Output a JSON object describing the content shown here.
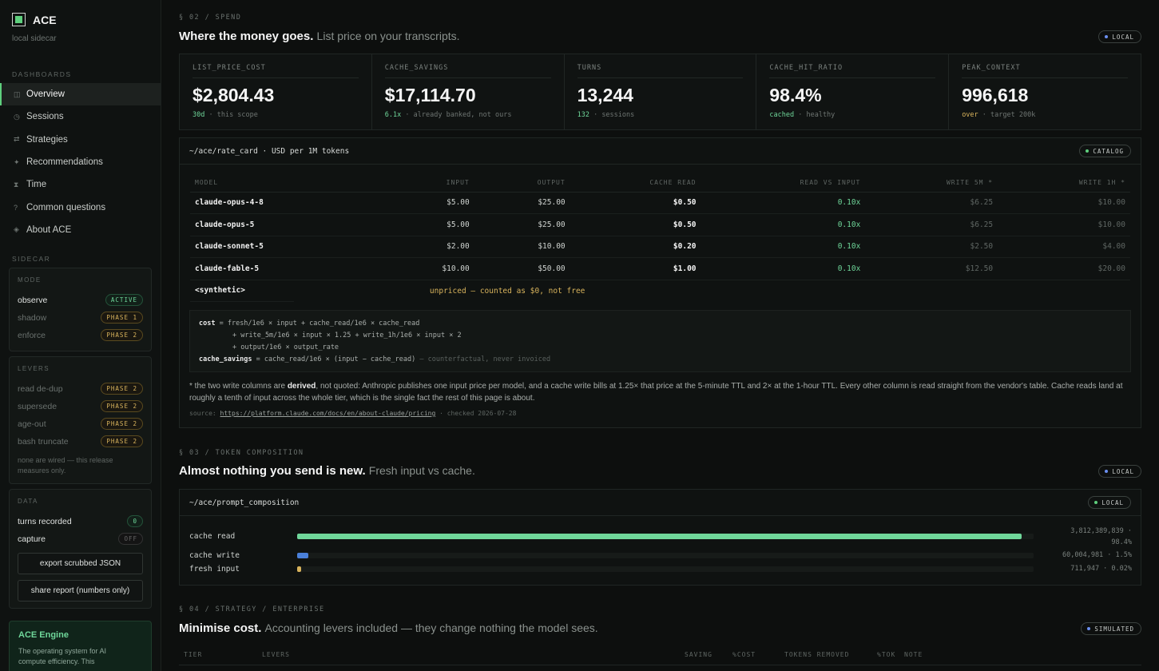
{
  "app": {
    "name": "ACE",
    "subtitle": "local sidecar"
  },
  "sidebar": {
    "dashboards_heading": "DASHBOARDS",
    "items": [
      {
        "label": "Overview",
        "icon": "◫"
      },
      {
        "label": "Sessions",
        "icon": "◷"
      },
      {
        "label": "Strategies",
        "icon": "⇄"
      },
      {
        "label": "Recommendations",
        "icon": "✦"
      },
      {
        "label": "Time",
        "icon": "⧗"
      },
      {
        "label": "Common questions",
        "icon": "?"
      },
      {
        "label": "About ACE",
        "icon": "◈"
      }
    ],
    "sidecar_heading": "SIDECAR",
    "mode": {
      "title": "MODE",
      "rows": [
        {
          "label": "observe",
          "badge": "ACTIVE"
        },
        {
          "label": "shadow",
          "badge": "PHASE 1"
        },
        {
          "label": "enforce",
          "badge": "PHASE 2"
        }
      ]
    },
    "levers": {
      "title": "LEVERS",
      "rows": [
        {
          "label": "read de-dup",
          "badge": "PHASE 2"
        },
        {
          "label": "supersede",
          "badge": "PHASE 2"
        },
        {
          "label": "age-out",
          "badge": "PHASE 2"
        },
        {
          "label": "bash truncate",
          "badge": "PHASE 2"
        }
      ],
      "note": "none are wired — this release measures only."
    },
    "data": {
      "title": "DATA",
      "turns_label": "turns recorded",
      "turns_value": "0",
      "capture_label": "capture",
      "capture_value": "OFF",
      "export_button": "export scrubbed JSON",
      "share_button": "share report (numbers only)"
    },
    "engine": {
      "title": "ACE Engine",
      "desc": "The operating system for AI compute efficiency. This"
    }
  },
  "spend": {
    "label": "§ 02 / SPEND",
    "title": "Where the money goes.",
    "subtitle": "List price on your transcripts.",
    "tag": "LOCAL",
    "kpis": [
      {
        "key": "LIST_PRICE_COST",
        "value": "$2,804.43",
        "sub_hl": "30d",
        "sub": "· this scope"
      },
      {
        "key": "CACHE_SAVINGS",
        "value": "$17,114.70",
        "sub_hl": "6.1x",
        "sub": "· already banked, not ours"
      },
      {
        "key": "TURNS",
        "value": "13,244",
        "sub_hl": "132",
        "sub": "· sessions"
      },
      {
        "key": "CACHE_HIT_RATIO",
        "value": "98.4%",
        "sub_hl": "cached",
        "sub": "· healthy"
      },
      {
        "key": "PEAK_CONTEXT",
        "value": "996,618",
        "sub_hl": "over",
        "sub": "· target 200k"
      }
    ]
  },
  "rate_card": {
    "path": "~/ace/rate_card · USD per 1M tokens",
    "tag": "CATALOG",
    "columns": [
      "MODEL",
      "INPUT",
      "OUTPUT",
      "CACHE READ",
      "READ VS INPUT",
      "WRITE 5M *",
      "WRITE 1H *"
    ],
    "rows": [
      [
        "claude-opus-4-8",
        "$5.00",
        "$25.00",
        "$0.50",
        "0.10x",
        "$6.25",
        "$10.00"
      ],
      [
        "claude-opus-5",
        "$5.00",
        "$25.00",
        "$0.50",
        "0.10x",
        "$6.25",
        "$10.00"
      ],
      [
        "claude-sonnet-5",
        "$2.00",
        "$10.00",
        "$0.20",
        "0.10x",
        "$2.50",
        "$4.00"
      ],
      [
        "claude-fable-5",
        "$10.00",
        "$50.00",
        "$1.00",
        "0.10x",
        "$12.50",
        "$20.00"
      ]
    ],
    "synthetic": {
      "model": "<synthetic>",
      "note": "unpriced — counted as $0, not free"
    },
    "formula": {
      "l1_key": "cost",
      "l1": " = fresh/1e6 × input + cache_read/1e6 × cache_read",
      "l2": "+ write_5m/1e6 × input × 1.25 + write_1h/1e6 × input × 2",
      "l3": "+ output/1e6 × output_rate",
      "l4_key": "cache_savings",
      "l4": " = cache_read/1e6 × (input − cache_read)",
      "l4_dim": " — counterfactual, never invoiced"
    },
    "footnote_a": "* the two write columns are ",
    "footnote_b": "derived",
    "footnote_c": ", not quoted: Anthropic publishes one input price per model, and a cache write bills at 1.25× that price at the 5-minute TTL and 2× at the 1-hour TTL. Every other column is read straight from the vendor's table. Cache reads land at roughly a tenth of input across the whole tier, which is the single fact the rest of this page is about.",
    "source_label": "source:",
    "source_url": "https://platform.claude.com/docs/en/about-claude/pricing",
    "source_checked": "· checked 2026-07-28"
  },
  "composition": {
    "label": "§ 03 / TOKEN COMPOSITION",
    "title": "Almost nothing you send is new.",
    "subtitle": "Fresh input vs cache.",
    "tag": "LOCAL",
    "path": "~/ace/prompt_composition",
    "card_tag": "LOCAL",
    "bars": [
      {
        "label": "cache read",
        "value": "3,812,389,839 ·",
        "pct": "98.4%",
        "fraction": 0.984,
        "color": "#6fd79a"
      },
      {
        "label": "cache write",
        "value": "60,004,981 · 1.5%",
        "pct": "",
        "fraction": 0.015,
        "color": "#4a80d9"
      },
      {
        "label": "fresh input",
        "value": "711,947 · 0.02%",
        "pct": "",
        "fraction": 0.005,
        "color": "#d8b35c"
      }
    ]
  },
  "strategy": {
    "label": "§ 04 / STRATEGY / ENTERPRISE",
    "title": "Minimise cost.",
    "subtitle": "Accounting levers included — they change nothing the model sees.",
    "tag": "SIMULATED",
    "columns": [
      "TIER",
      "LEVERS",
      "SAVING",
      "%COST",
      "TOKENS REMOVED",
      "%TOK",
      "NOTE"
    ]
  }
}
